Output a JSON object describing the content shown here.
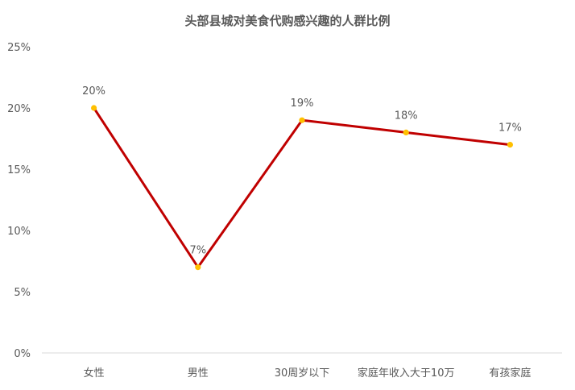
{
  "chart_data": {
    "type": "line",
    "title": "头部县城对美食代购感兴趣的人群比例",
    "categories": [
      "女性",
      "男性",
      "30周岁以下",
      "家庭年收入大于10万",
      "有孩家庭"
    ],
    "values": [
      20,
      7,
      19,
      18,
      17
    ],
    "data_labels": [
      "20%",
      "7%",
      "19%",
      "18%",
      "17%"
    ],
    "ylim": [
      0,
      25
    ],
    "yticks": [
      0,
      5,
      10,
      15,
      20,
      25
    ],
    "ytick_labels": [
      "0%",
      "5%",
      "10%",
      "15%",
      "20%",
      "25%"
    ],
    "grid": false,
    "legend": "none",
    "line_color": "#C00000",
    "marker_color": "#FFC000"
  }
}
